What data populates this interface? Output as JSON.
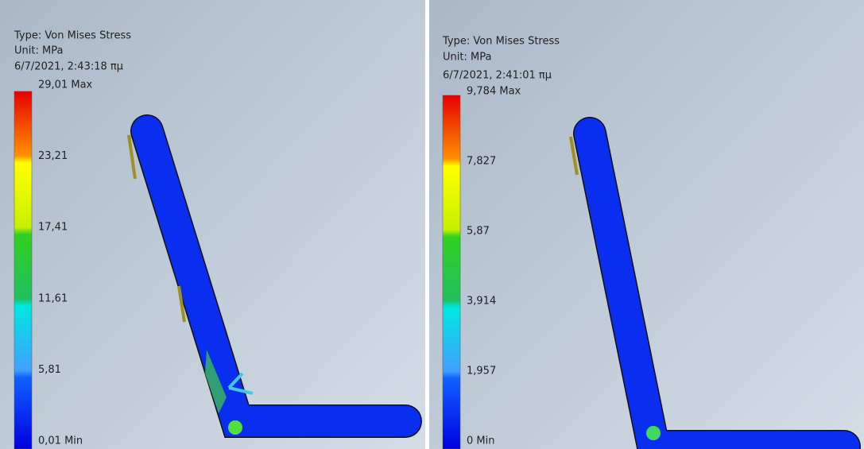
{
  "panels": [
    {
      "type": "Type: Von Mises Stress",
      "unit": "Unit: MPa",
      "date": "6/7/2021, 2:43:18 πμ",
      "legend": [
        "29,01 Max",
        "23,21",
        "17,41",
        "11,61",
        "5,81",
        "0,01 Min"
      ]
    },
    {
      "type": "Type: Von Mises Stress",
      "unit": "Unit: MPa",
      "date": "6/7/2021, 2:41:01 πμ",
      "legend": [
        "9,784 Max",
        "7,827",
        "5,87",
        "3,914",
        "1,957",
        "0 Min"
      ]
    }
  ]
}
